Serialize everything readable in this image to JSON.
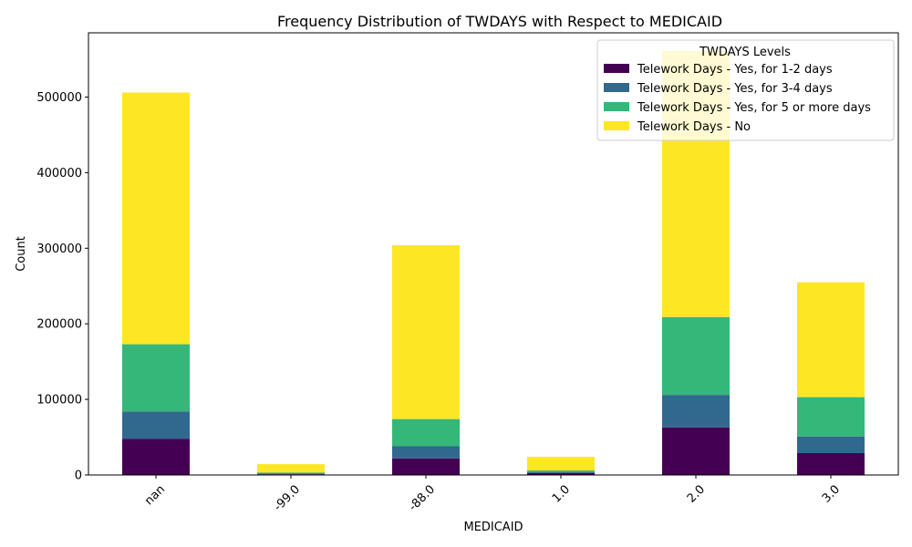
{
  "chart_data": {
    "type": "bar",
    "stacked": true,
    "title": "Frequency Distribution of TWDAYS with Respect to MEDICAID",
    "xlabel": "MEDICAID",
    "ylabel": "Count",
    "ylim": [
      0,
      585000
    ],
    "yticks": [
      0,
      100000,
      200000,
      300000,
      400000,
      500000
    ],
    "categories": [
      "nan",
      "-99.0",
      "-88.0",
      "1.0",
      "2.0",
      "3.0"
    ],
    "legend": {
      "title": "TWDAYS Levels",
      "placement": "top-right"
    },
    "grid": false,
    "series": [
      {
        "name": "Telework Days - Yes, for 1-2 days",
        "color": "#440154",
        "values": [
          48000,
          1000,
          22000,
          2500,
          63000,
          29000
        ]
      },
      {
        "name": "Telework Days - Yes, for 3-4 days",
        "color": "#31688e",
        "values": [
          36000,
          800,
          16000,
          1500,
          43000,
          22000
        ]
      },
      {
        "name": "Telework Days - Yes, for 5 or more days",
        "color": "#35b779",
        "values": [
          89000,
          1500,
          36000,
          2000,
          103000,
          52000
        ]
      },
      {
        "name": "Telework Days - No",
        "color": "#fde725",
        "values": [
          333000,
          11000,
          230000,
          18000,
          352000,
          152000
        ]
      }
    ]
  }
}
